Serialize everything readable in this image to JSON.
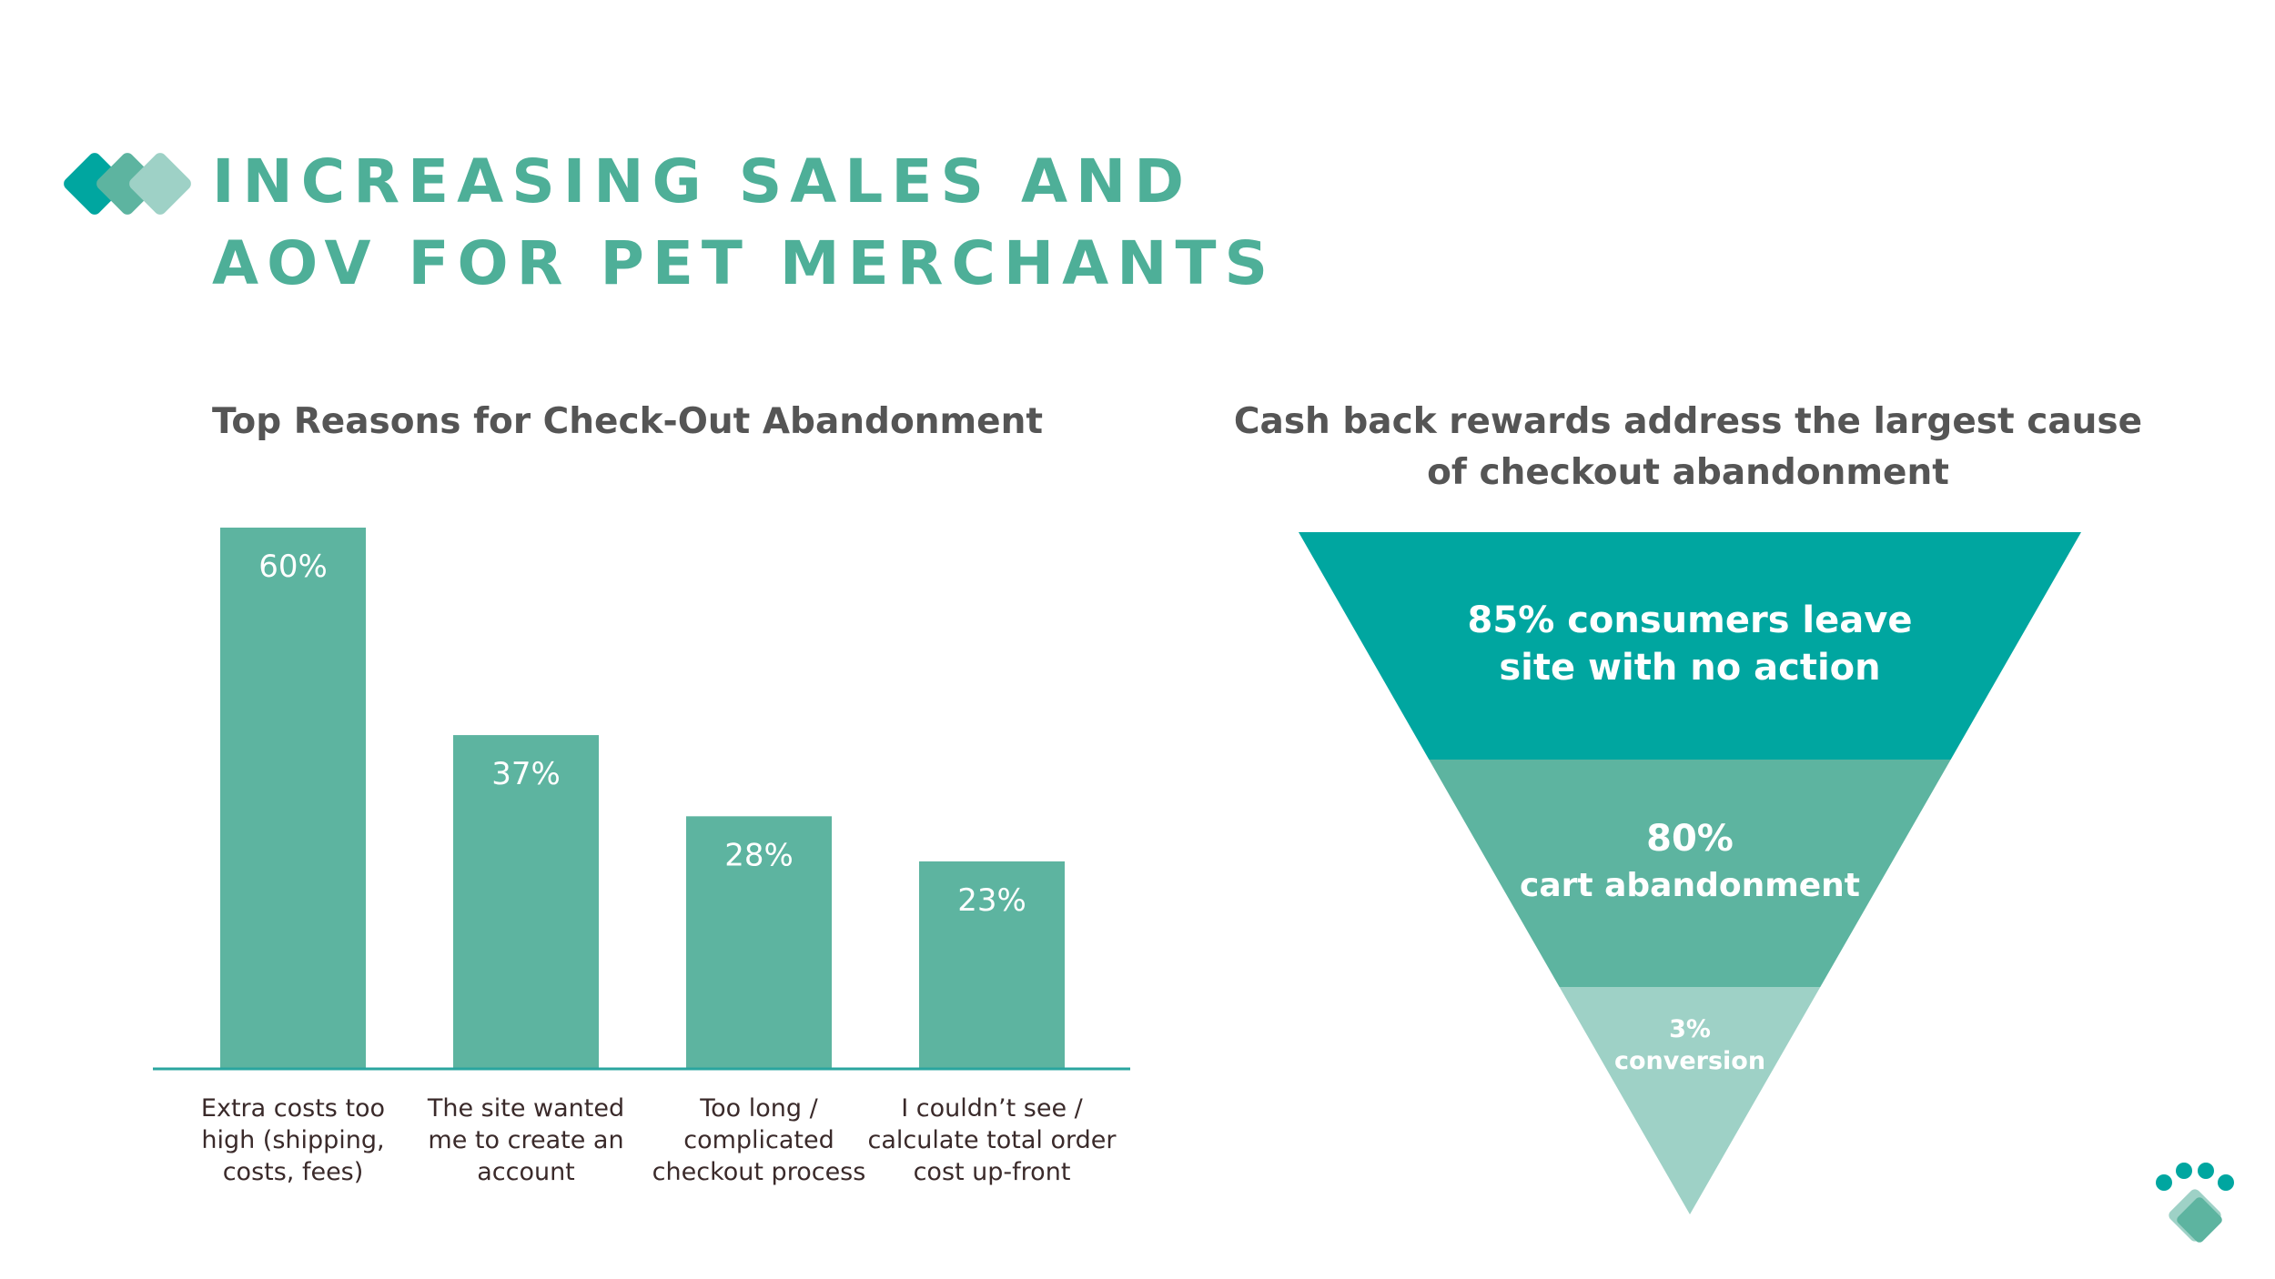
{
  "header": {
    "title_line_1": "INCREASING SALES AND",
    "title_line_2": "AOV FOR PET MERCHANTS"
  },
  "colors": {
    "teal_dark": "#00A6A0",
    "teal": "#5DB4A0",
    "teal_light": "#9ED1C6",
    "title": "#4EAF98",
    "text_dark": "#3A2A2A",
    "axis": "#2AA59F"
  },
  "chart_data": [
    {
      "type": "bar",
      "title": "Top Reasons for Check-Out Abandonment",
      "categories": [
        [
          "Extra costs too",
          "high (shipping,",
          "costs, fees)"
        ],
        [
          "The site wanted",
          "me to create an",
          "account"
        ],
        [
          "Too long /",
          "complicated",
          "checkout process"
        ],
        [
          "I couldn’t see /",
          "calculate total order",
          "cost up-front"
        ]
      ],
      "values": [
        60,
        37,
        28,
        23
      ],
      "data_labels": [
        "60%",
        "37%",
        "28%",
        "23%"
      ],
      "ylim": [
        0,
        60
      ],
      "grid": false,
      "legend": "none"
    },
    {
      "type": "funnel",
      "title": "Cash back rewards address the largest cause of checkout abandonment",
      "stages": [
        {
          "lines": [
            "85% consumers leave",
            "site with no action"
          ],
          "value": 85
        },
        {
          "lines": [
            "80%",
            "cart abandonment"
          ],
          "value": 80
        },
        {
          "lines": [
            "3%",
            "conversion"
          ],
          "value": 3
        }
      ]
    }
  ],
  "icons": {
    "logo": "diamond-logo-icon",
    "paw": "paw-diamond-icon"
  }
}
